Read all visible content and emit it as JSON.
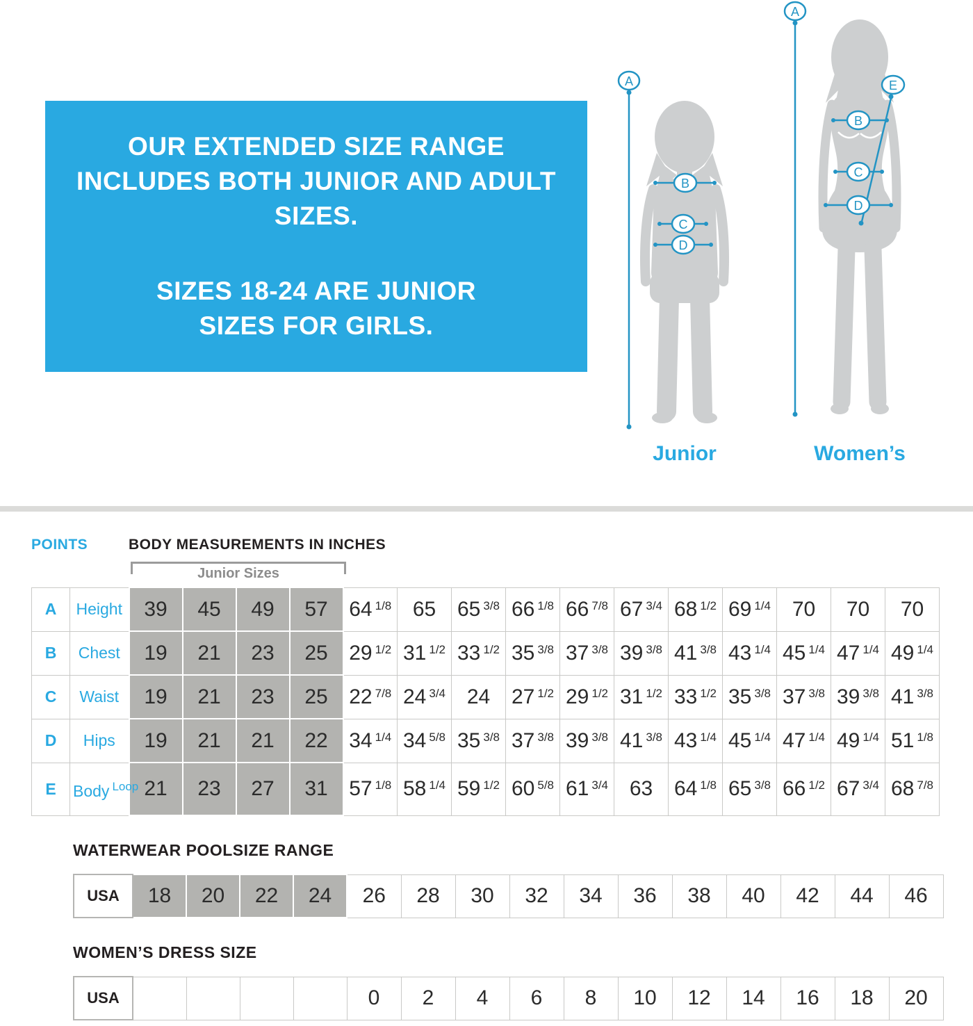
{
  "colors": {
    "accent": "#29a9e1",
    "annotation_line": "#2394c4",
    "silhouette": "#cdcfd0",
    "junior_cell_gray": "#b3b3b0"
  },
  "banner": {
    "text_1": "OUR EXTENDED SIZE RANGE INCLUDES BOTH JUNIOR AND ADULT SIZES.",
    "text_2": "SIZES 18-24 ARE JUNIOR SIZES FOR GIRLS."
  },
  "figures": {
    "junior_label": "Junior",
    "womens_label": "Women’s",
    "junior_points": [
      "A",
      "B",
      "C",
      "D"
    ],
    "womens_points": [
      "A",
      "B",
      "C",
      "D",
      "E"
    ]
  },
  "size_chart": {
    "points_header": "POINTS",
    "title": "BODY MEASUREMENTS IN INCHES",
    "bracket_label": "Junior Sizes",
    "rows": [
      {
        "point": "A",
        "label": "Height",
        "junior": [
          "39",
          "45",
          "49",
          "57"
        ],
        "womens": [
          "64 1/8",
          "65",
          "65 3/8",
          "66 1/8",
          "66 7/8",
          "67 3/4",
          "68 1/2",
          "69 1/4",
          "70",
          "70",
          "70"
        ]
      },
      {
        "point": "B",
        "label": "Chest",
        "junior": [
          "19",
          "21",
          "23",
          "25"
        ],
        "womens": [
          "29 1/2",
          "31 1/2",
          "33 1/2",
          "35 3/8",
          "37 3/8",
          "39 3/8",
          "41 3/8",
          "43 1/4",
          "45 1/4",
          "47 1/4",
          "49 1/4"
        ]
      },
      {
        "point": "C",
        "label": "Waist",
        "junior": [
          "19",
          "21",
          "23",
          "25"
        ],
        "womens": [
          "22 7/8",
          "24 3/4",
          "24",
          "27 1/2",
          "29 1/2",
          "31 1/2",
          "33 1/2",
          "35 3/8",
          "37 3/8",
          "39 3/8",
          "41 3/8"
        ]
      },
      {
        "point": "D",
        "label": "Hips",
        "junior": [
          "19",
          "21",
          "21",
          "22"
        ],
        "womens": [
          "34 1/4",
          "34 5/8",
          "35 3/8",
          "37 3/8",
          "39 3/8",
          "41 3/8",
          "43 1/4",
          "45 1/4",
          "47 1/4",
          "49 1/4",
          "51 1/8"
        ]
      },
      {
        "point": "E",
        "label": "Body Loop",
        "junior": [
          "21",
          "23",
          "27",
          "31"
        ],
        "womens": [
          "57 1/8",
          "58 1/4",
          "59 1/2",
          "60 5/8",
          "61 3/4",
          "63",
          "64 1/8",
          "65 3/8",
          "66 1/2",
          "67 3/4",
          "68 7/8"
        ]
      }
    ]
  },
  "poolsize": {
    "title": "WATERWEAR POOLSIZE RANGE",
    "row_label": "USA",
    "junior": [
      "18",
      "20",
      "22",
      "24"
    ],
    "womens": [
      "26",
      "28",
      "30",
      "32",
      "34",
      "36",
      "38",
      "40",
      "42",
      "44",
      "46"
    ]
  },
  "dress": {
    "title": "WOMEN’S DRESS SIZE",
    "row_label": "USA",
    "junior": [
      "",
      "",
      "",
      ""
    ],
    "womens": [
      "0",
      "2",
      "4",
      "6",
      "8",
      "10",
      "12",
      "14",
      "16",
      "18",
      "20"
    ]
  }
}
